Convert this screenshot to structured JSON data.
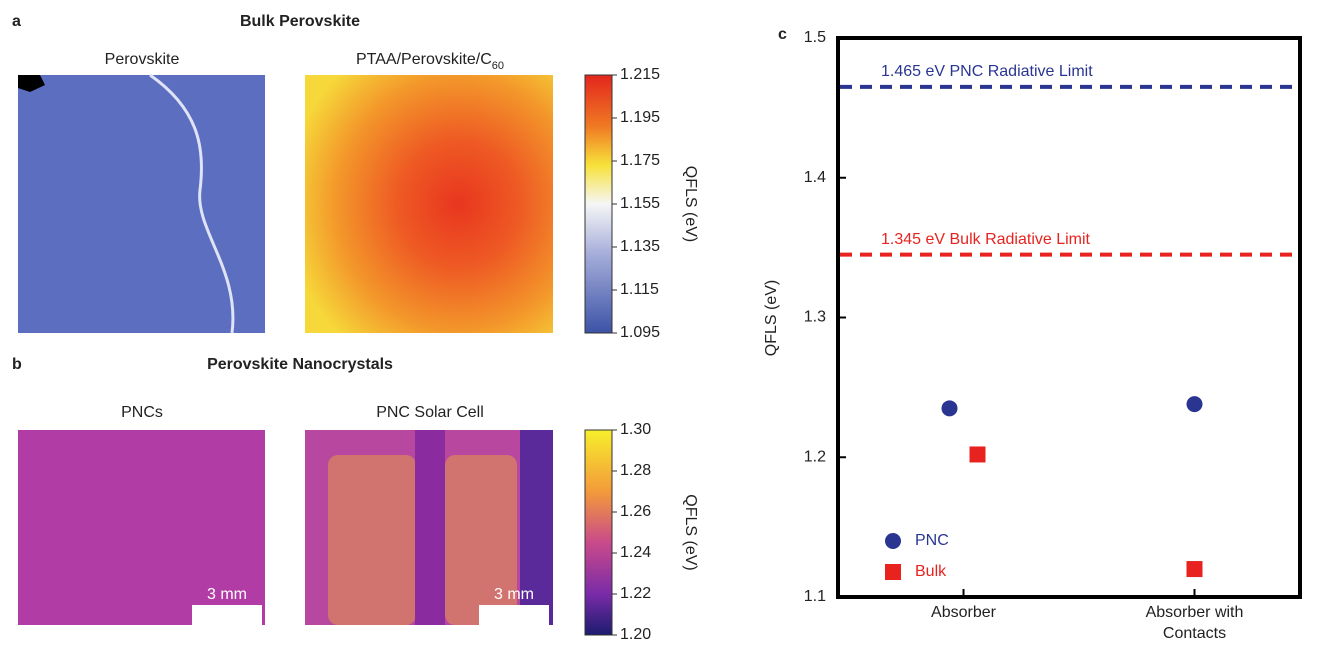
{
  "chart_data": [
    {
      "type": "image",
      "panel": "a",
      "title": "Bulk Perovskite",
      "subplots": [
        {
          "title": "Perovskite"
        },
        {
          "title": "PTAA/Perovskite/C",
          "title_subscript": "60"
        }
      ],
      "colorbar": {
        "label": "QFLS (eV)",
        "lim": [
          1.095,
          1.215
        ],
        "ticks": [
          1.095,
          1.115,
          1.135,
          1.155,
          1.175,
          1.195,
          1.215
        ]
      }
    },
    {
      "type": "image",
      "panel": "b",
      "title": "Perovskite Nanocrystals",
      "subplots": [
        {
          "title": "PNCs",
          "scale_bar": "3 mm"
        },
        {
          "title": "PNC Solar Cell",
          "scale_bar": "3 mm"
        }
      ],
      "colorbar": {
        "label": "QFLS (eV)",
        "lim": [
          1.2,
          1.3
        ],
        "ticks": [
          {
            "value": 1.2,
            "label": "1.20"
          },
          1.22,
          1.24,
          1.26,
          1.28,
          {
            "value": 1.3,
            "label": "1.30"
          }
        ]
      }
    },
    {
      "type": "scatter",
      "panel": "c",
      "ylabel": "QFLS (eV)",
      "categories": [
        "Absorber",
        "Absorber with Contacts"
      ],
      "series": [
        {
          "name": "PNC",
          "color": "#2a3592",
          "marker": "circle",
          "values": [
            1.235,
            1.238
          ]
        },
        {
          "name": "Bulk",
          "color": "#e8231f",
          "marker": "square",
          "values": [
            1.202,
            1.12
          ]
        }
      ],
      "ylim": [
        1.1,
        1.5
      ],
      "yticks": [
        1.1,
        1.2,
        1.3,
        1.4,
        1.5
      ],
      "reference_lines": [
        {
          "value": 1.465,
          "label": "1.465 eV PNC Radiative Limit",
          "color": "#2a3592"
        },
        {
          "value": 1.345,
          "label": "1.345 eV Bulk Radiative Limit",
          "color": "#e8231f"
        }
      ]
    }
  ]
}
